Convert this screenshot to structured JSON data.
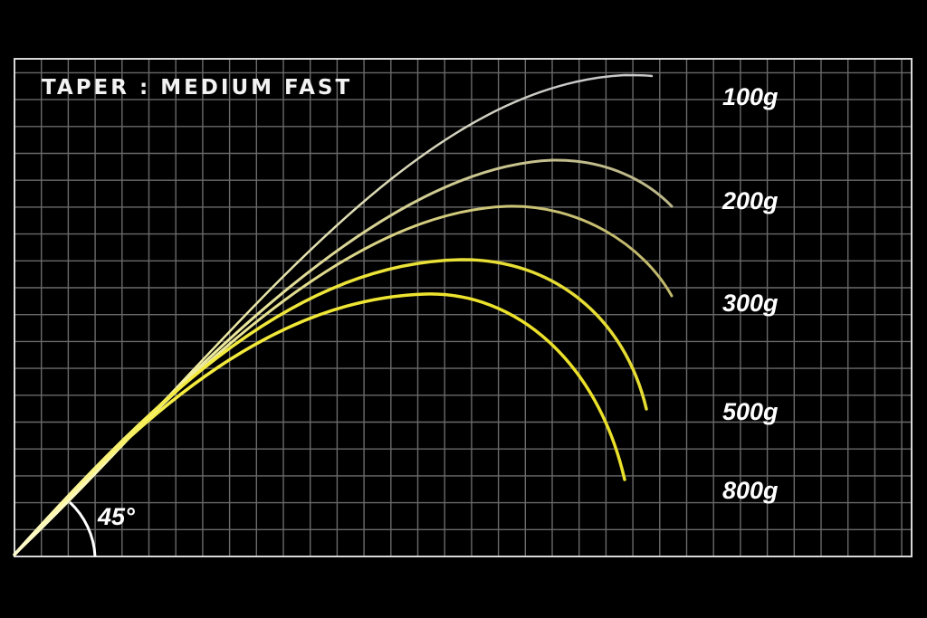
{
  "title": "TAPER : MEDIUM FAST",
  "angle_label": "45°",
  "curves": [
    {
      "label": "100g",
      "color": "#c8c8c8"
    },
    {
      "label": "200g",
      "color": "#bdb88a"
    },
    {
      "label": "300g",
      "color": "#bfb66a"
    },
    {
      "label": "500g",
      "color": "#e2d830"
    },
    {
      "label": "800g",
      "color": "#e8dc20"
    }
  ],
  "colors": {
    "background": "#000000",
    "grid": "#6a6a6a",
    "frame": "#d8d8d8",
    "start": "#fffbd0"
  }
}
